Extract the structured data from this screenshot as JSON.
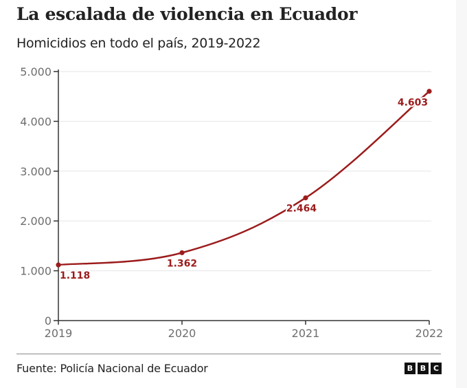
{
  "header": {
    "title": "La escalada de violencia en Ecuador",
    "subtitle": "Homicidios en todo el país, 2019-2022"
  },
  "footer": {
    "source": "Fuente: Policía Nacional de Ecuador",
    "logo_letters": [
      "B",
      "B",
      "C"
    ]
  },
  "colors": {
    "series": "#9c1c1c",
    "axis": "#333333",
    "grid": "#e6e6e6",
    "tick_text": "#6e6e6e"
  },
  "chart_data": {
    "type": "line",
    "title": "La escalada de violencia en Ecuador",
    "subtitle": "Homicidios en todo el país, 2019-2022",
    "xlabel": "",
    "ylabel": "",
    "x": [
      2019,
      2020,
      2021,
      2022
    ],
    "x_tick_labels": [
      "2019",
      "2020",
      "2021",
      "2022"
    ],
    "series": [
      {
        "name": "Homicidios",
        "values": [
          1118,
          1362,
          2464,
          4603
        ],
        "data_labels": [
          "1.118",
          "1.362",
          "2.464",
          "4.603"
        ]
      }
    ],
    "ylim": [
      0,
      5000
    ],
    "y_ticks": [
      0,
      1000,
      2000,
      3000,
      4000,
      5000
    ],
    "y_tick_labels": [
      "0",
      "1.000",
      "2.000",
      "3.000",
      "4.000",
      "5.000"
    ],
    "grid": true,
    "legend": "none",
    "curve": "smooth"
  }
}
